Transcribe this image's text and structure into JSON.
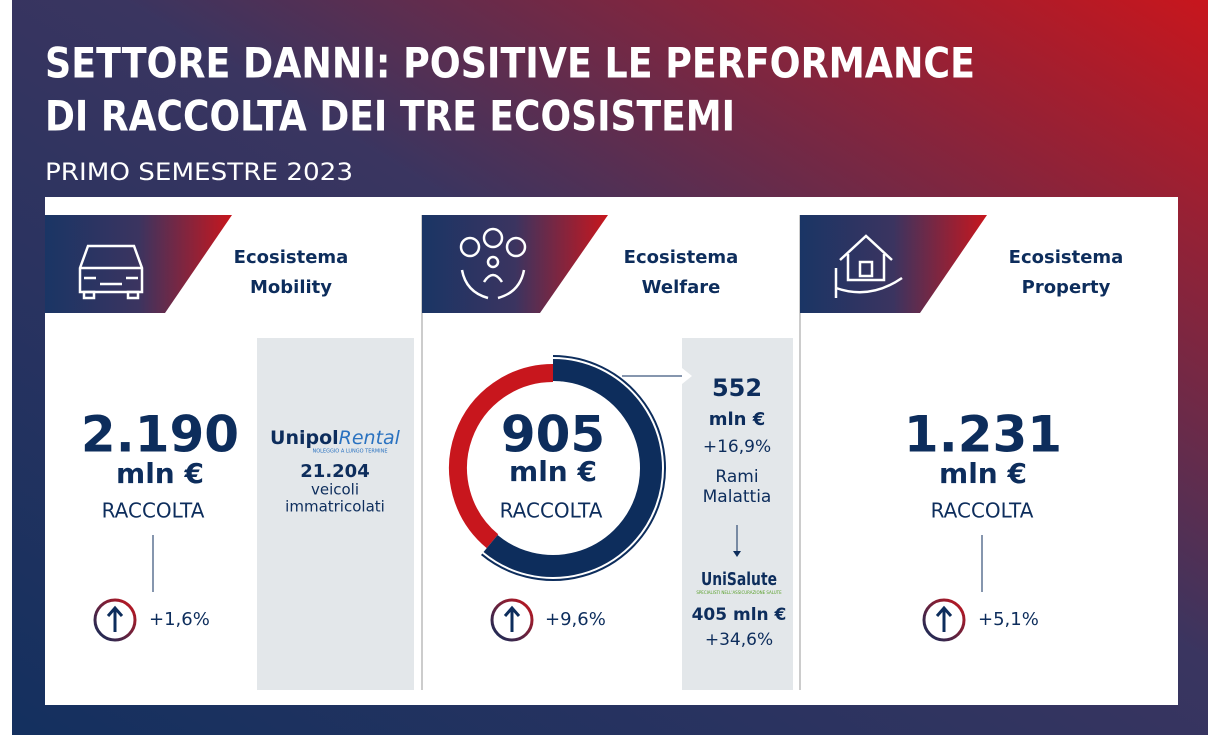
{
  "header": {
    "title_lines": [
      "SETTORE DANNI: POSITIVE LE PERFORMANCE",
      "DI RACCOLTA DEI TRE ECOSISTEMI"
    ],
    "subtitle": "PRIMO SEMESTRE 2023"
  },
  "columns": [
    {
      "name_lines": [
        "Ecosistema",
        "Mobility"
      ],
      "amount": "2.190",
      "unit": "mln €",
      "label": "RACCOLTA",
      "growth": "+1,6%",
      "side": {
        "logo": [
          "Unipol",
          "Rental"
        ],
        "logo_tagline": "NOLEGGIO A LUNGO TERMINE",
        "count": "21.204",
        "text_lines": [
          "veicoli",
          "immatricolati"
        ]
      }
    },
    {
      "name_lines": [
        "Ecosistema",
        "Welfare"
      ],
      "amount": "905",
      "unit": "mln €",
      "label": "RACCOLTA",
      "growth": "+9,6%",
      "side": {
        "amount": "552",
        "unit": "mln €",
        "growth": "+16,9%",
        "text_lines": [
          "Rami",
          "Malattia"
        ],
        "logo": "UniSalute",
        "logo_tagline": "SPECIALISTI NELL'ASSICURAZIONE SALUTE",
        "sub_amount": "405 mln €",
        "sub_growth": "+34,6%"
      }
    },
    {
      "name_lines": [
        "Ecosistema",
        "Property"
      ],
      "amount": "1.231",
      "unit": "mln €",
      "label": "RACCOLTA",
      "growth": "+5,1%"
    }
  ]
}
